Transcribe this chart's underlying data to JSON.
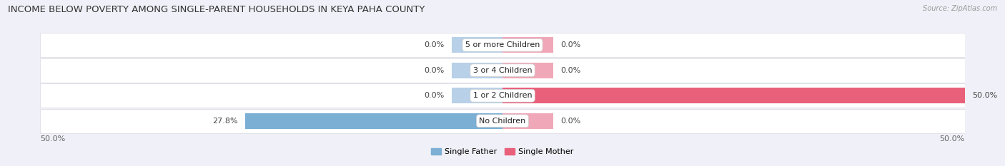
{
  "title": "INCOME BELOW POVERTY AMONG SINGLE-PARENT HOUSEHOLDS IN KEYA PAHA COUNTY",
  "source": "Source: ZipAtlas.com",
  "categories": [
    "No Children",
    "1 or 2 Children",
    "3 or 4 Children",
    "5 or more Children"
  ],
  "single_father": [
    27.8,
    0.0,
    0.0,
    0.0
  ],
  "single_mother": [
    0.0,
    50.0,
    0.0,
    0.0
  ],
  "father_color": "#7bafd4",
  "father_stub_color": "#b8d0e8",
  "mother_color": "#e8607a",
  "mother_stub_color": "#f0a8b8",
  "bar_height": 0.62,
  "xlim_left": -50,
  "xlim_right": 50,
  "stub_size": 5.5,
  "background_color": "#f0f0f8",
  "row_color": "#ffffff",
  "separator_color": "#d8d8e0",
  "title_fontsize": 9.5,
  "source_fontsize": 7,
  "label_fontsize": 8,
  "category_fontsize": 8,
  "legend_fontsize": 8,
  "axis_label_fontsize": 8
}
